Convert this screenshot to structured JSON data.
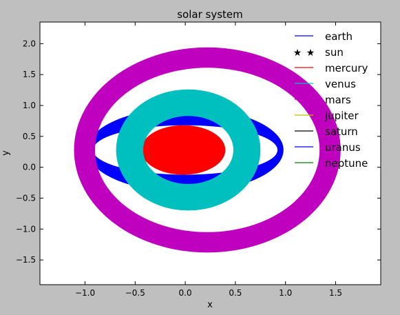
{
  "chart_data": {
    "type": "line",
    "title": "solar system",
    "xlabel": "x",
    "ylabel": "y",
    "xlim": [
      -1.45,
      1.95
    ],
    "ylim": [
      -1.9,
      2.35
    ],
    "xticks": [
      -1.0,
      -0.5,
      0.0,
      0.5,
      1.0,
      1.5
    ],
    "xtick_labels": [
      "−1.0",
      "−0.5",
      "0.0",
      "0.5",
      "1.0",
      "1.5"
    ],
    "yticks": [
      -1.5,
      -1.0,
      -0.5,
      0.0,
      0.5,
      1.0,
      1.5,
      2.0
    ],
    "ytick_labels": [
      "−1.5",
      "−1.0",
      "−0.5",
      "0.0",
      "0.5",
      "1.0",
      "1.5",
      "2.0"
    ],
    "grid": false,
    "legend_position": "top-right",
    "series": [
      {
        "name": "earth",
        "color": "#0000ff",
        "marker": "line",
        "band": {
          "cx": 0.0,
          "cy": 0.28,
          "rx_outer": 0.98,
          "rx_inner": 0.92,
          "ry_outer": 0.68,
          "ry_inner": 0.4
        }
      },
      {
        "name": "sun",
        "color": "#000000",
        "marker": "star",
        "points": []
      },
      {
        "name": "mercury",
        "color": "#ff0000",
        "marker": "line",
        "band": {
          "cx": -0.02,
          "cy": 0.28,
          "rx_outer": 0.42,
          "rx_inner": 0.0,
          "ry_outer": 0.4,
          "ry_inner": 0.0
        }
      },
      {
        "name": "venus",
        "color": "#00bfbf",
        "marker": "line",
        "band": {
          "cx": 0.03,
          "cy": 0.28,
          "rx_outer": 0.72,
          "rx_inner": 0.45,
          "ry_outer": 0.98,
          "ry_inner": 0.55
        }
      },
      {
        "name": "mars",
        "color": "#bf00bf",
        "marker": "line",
        "band": {
          "cx": 0.22,
          "cy": 0.28,
          "rx_outer": 1.33,
          "rx_inner": 1.12,
          "ry_outer": 1.66,
          "ry_inner": 1.33
        }
      },
      {
        "name": "jupiter",
        "color": "#bfbf00",
        "marker": "line",
        "points": []
      },
      {
        "name": "saturn",
        "color": "#000000",
        "marker": "line",
        "points": []
      },
      {
        "name": "uranus",
        "color": "#0000ff",
        "marker": "line",
        "points": []
      },
      {
        "name": "neptune",
        "color": "#008000",
        "marker": "line",
        "points": []
      }
    ]
  }
}
